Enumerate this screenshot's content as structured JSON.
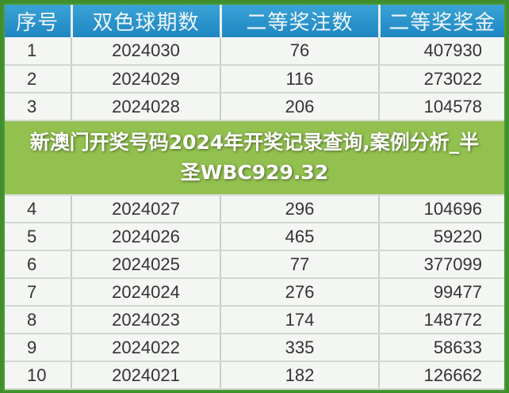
{
  "headers": [
    "序号",
    "双色球期数",
    "二等奖注数",
    "二等奖奖金"
  ],
  "rows": [
    [
      "1",
      "2024030",
      "76",
      "407930"
    ],
    [
      "2",
      "2024029",
      "116",
      "273022"
    ],
    [
      "3",
      "2024028",
      "206",
      "104578"
    ],
    [
      "4",
      "2024027",
      "296",
      "104696"
    ],
    [
      "5",
      "2024026",
      "465",
      "59220"
    ],
    [
      "6",
      "2024025",
      "77",
      "377099"
    ],
    [
      "7",
      "2024024",
      "276",
      "99477"
    ],
    [
      "8",
      "2024023",
      "174",
      "148772"
    ],
    [
      "9",
      "2024022",
      "335",
      "58633"
    ],
    [
      "10",
      "2024021",
      "182",
      "126662"
    ]
  ],
  "overlay_title": "新澳门开奖号码2024年开奖记录查询,案例分析_半圣WBC929.32"
}
